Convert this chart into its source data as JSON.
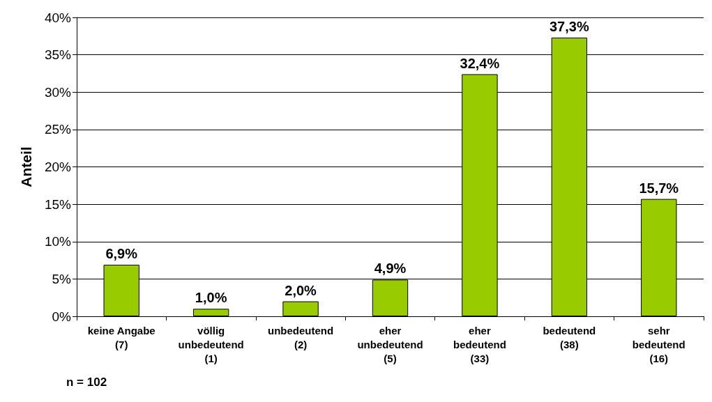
{
  "chart_data": {
    "type": "bar",
    "ylabel": "Anteil",
    "categories": [
      "keine Angabe\n(7)",
      "völlig\nunbedeutend\n(1)",
      "unbedeutend\n(2)",
      "eher\nunbedeutend\n(5)",
      "eher\nbedeutend\n(33)",
      "bedeutend\n(38)",
      "sehr\nbedeutend\n(16)"
    ],
    "values": [
      6.9,
      1.0,
      2.0,
      4.9,
      32.4,
      37.3,
      15.7
    ],
    "value_labels": [
      "6,9%",
      "1,0%",
      "2,0%",
      "4,9%",
      "32,4%",
      "37,3%",
      "15,7%"
    ],
    "color": "#99cc00",
    "ylim": [
      0,
      40
    ],
    "yticks": [
      {
        "value": 0,
        "label": "0%"
      },
      {
        "value": 5,
        "label": "5%"
      },
      {
        "value": 10,
        "label": "10%"
      },
      {
        "value": 15,
        "label": "15%"
      },
      {
        "value": 20,
        "label": "20%"
      },
      {
        "value": 25,
        "label": "25%"
      },
      {
        "value": 30,
        "label": "30%"
      },
      {
        "value": 35,
        "label": "35%"
      },
      {
        "value": 40,
        "label": "40%"
      }
    ],
    "grid": "y",
    "annotations": [
      "n = 102"
    ]
  }
}
